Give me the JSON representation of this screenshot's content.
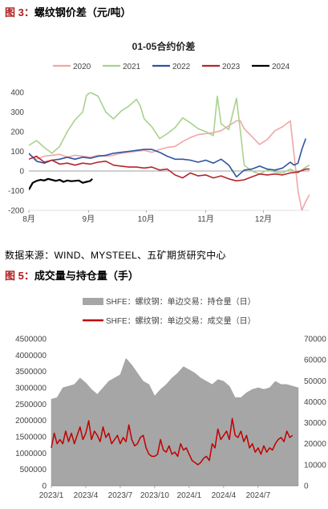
{
  "figure3": {
    "label": "图 3：",
    "title": "螺纹钢价差（元/吨）"
  },
  "source_note": "数据来源：WIND、MYSTEEL、五矿期货研究中心",
  "figure5": {
    "label": "图 5：",
    "title": "成交量与持仓量（手）"
  },
  "colors": {
    "s2020": "#f0a7a7",
    "s2021": "#a9d18e",
    "s2022": "#2e54a0",
    "s2023": "#b5262f",
    "s2024": "#000000",
    "oi": "#a6a6a6",
    "vol": "#c00000"
  },
  "chart_data": [
    {
      "type": "line",
      "title": "01-05合约价差",
      "ylim": [
        -200,
        400
      ],
      "yticks": [
        -200,
        -100,
        0,
        100,
        200,
        300,
        400
      ],
      "xlim": [
        0,
        146
      ],
      "x_month_ticks": [
        {
          "label": "8月",
          "x": 0
        },
        {
          "label": "9月",
          "x": 31
        },
        {
          "label": "10月",
          "x": 61
        },
        {
          "label": "11月",
          "x": 92
        },
        {
          "label": "12月",
          "x": 122
        }
      ],
      "legend_position": "top",
      "series": [
        {
          "name": "2020",
          "x": [
            0,
            4,
            8,
            12,
            16,
            20,
            24,
            28,
            32,
            36,
            40,
            44,
            48,
            52,
            56,
            60,
            64,
            68,
            72,
            76,
            80,
            84,
            88,
            92,
            96,
            100,
            104,
            108,
            110,
            112,
            116,
            120,
            124,
            128,
            132,
            136,
            138,
            140,
            142,
            144,
            146
          ],
          "y": [
            85,
            60,
            75,
            80,
            85,
            70,
            80,
            75,
            70,
            80,
            75,
            80,
            90,
            95,
            100,
            105,
            95,
            110,
            120,
            125,
            150,
            170,
            185,
            190,
            195,
            205,
            230,
            255,
            255,
            215,
            175,
            135,
            160,
            205,
            225,
            255,
            80,
            -100,
            -200,
            -155,
            -120
          ]
        },
        {
          "name": "2021",
          "x": [
            0,
            4,
            8,
            12,
            16,
            20,
            24,
            28,
            30,
            32,
            36,
            40,
            44,
            48,
            52,
            56,
            58,
            60,
            64,
            68,
            72,
            76,
            80,
            84,
            88,
            92,
            96,
            98,
            100,
            104,
            108,
            110,
            112,
            116,
            120,
            124,
            128,
            132,
            136,
            140,
            144,
            146
          ],
          "y": [
            130,
            155,
            120,
            90,
            125,
            200,
            260,
            300,
            385,
            400,
            380,
            300,
            265,
            305,
            330,
            365,
            330,
            265,
            225,
            165,
            190,
            220,
            270,
            245,
            215,
            200,
            180,
            380,
            240,
            210,
            370,
            205,
            30,
            0,
            -15,
            5,
            -5,
            -10,
            10,
            -10,
            20,
            30
          ]
        },
        {
          "name": "2022",
          "x": [
            0,
            4,
            8,
            12,
            16,
            20,
            24,
            28,
            32,
            36,
            40,
            44,
            48,
            52,
            56,
            60,
            64,
            68,
            72,
            76,
            80,
            84,
            88,
            92,
            96,
            100,
            104,
            108,
            112,
            116,
            120,
            124,
            128,
            132,
            136,
            138,
            140,
            142,
            144
          ],
          "y": [
            90,
            50,
            40,
            55,
            60,
            70,
            60,
            70,
            65,
            75,
            80,
            90,
            95,
            100,
            105,
            110,
            110,
            95,
            75,
            60,
            60,
            55,
            45,
            55,
            40,
            60,
            30,
            -30,
            5,
            10,
            25,
            10,
            5,
            15,
            45,
            30,
            40,
            110,
            165
          ]
        },
        {
          "name": "2023",
          "x": [
            0,
            4,
            8,
            12,
            16,
            20,
            24,
            28,
            32,
            36,
            40,
            44,
            48,
            52,
            56,
            60,
            64,
            68,
            72,
            76,
            80,
            84,
            88,
            92,
            96,
            100,
            104,
            108,
            112,
            116,
            120,
            124,
            128,
            132,
            136,
            140,
            144,
            146
          ],
          "y": [
            60,
            75,
            45,
            55,
            35,
            40,
            30,
            40,
            35,
            45,
            50,
            30,
            25,
            20,
            20,
            15,
            20,
            5,
            10,
            -20,
            -35,
            -10,
            -25,
            -20,
            -35,
            -25,
            -40,
            -50,
            -45,
            -30,
            -15,
            -20,
            -15,
            -20,
            -10,
            -5,
            10,
            10
          ]
        },
        {
          "name": "2024",
          "x": [
            0,
            2,
            4,
            6,
            8,
            10,
            12,
            14,
            16,
            18,
            20,
            22,
            24,
            26,
            28,
            30,
            32,
            33
          ],
          "y": [
            -95,
            -60,
            -50,
            -45,
            -48,
            -40,
            -45,
            -50,
            -45,
            -55,
            -48,
            -52,
            -50,
            -48,
            -60,
            -55,
            -50,
            -40
          ]
        }
      ]
    },
    {
      "type": "area",
      "legend_position": "top",
      "ylim_left": [
        0,
        4500000
      ],
      "yticks_left": [
        "0",
        "500000",
        "1000000",
        "1500000",
        "2000000",
        "2500000",
        "3000000",
        "3500000",
        "4000000",
        "4500000"
      ],
      "ylim_right": [
        0,
        70000
      ],
      "yticks_right": [
        "0",
        "10000",
        "20000",
        "30000",
        "40000",
        "50000",
        "60000",
        "70000"
      ],
      "x_ticks": [
        "2023/1",
        "2023/4",
        "2023/7",
        "2023/10",
        "2024/1",
        "2024/4",
        "2024/7"
      ],
      "x_tick_pos": [
        0,
        3,
        6,
        9,
        12,
        15,
        18
      ],
      "xlim": [
        0,
        21.5
      ],
      "series": [
        {
          "name": "SHFE：螺纹钢：单边交易：持仓量（日）",
          "axis": "left",
          "kind": "area",
          "x": [
            0,
            0.5,
            1,
            1.5,
            2,
            2.5,
            3,
            3.5,
            4,
            4.5,
            5,
            5.5,
            6,
            6.5,
            7,
            7.5,
            8,
            8.5,
            9,
            9.5,
            10,
            10.5,
            11,
            11.5,
            12,
            12.5,
            13,
            13.5,
            14,
            14.5,
            15,
            15.5,
            16,
            16.5,
            17,
            17.5,
            18,
            18.5,
            19,
            19.5,
            20,
            20.5,
            21,
            21.5
          ],
          "y": [
            2650000,
            2700000,
            3000000,
            3050000,
            3100000,
            3300000,
            3150000,
            2950000,
            2800000,
            3000000,
            3200000,
            3300000,
            3400000,
            3900000,
            3700000,
            3450000,
            3200000,
            3100000,
            2750000,
            2950000,
            3100000,
            3300000,
            3450000,
            3650000,
            3550000,
            3450000,
            3300000,
            3200000,
            3100000,
            3250000,
            3200000,
            3050000,
            2700000,
            2700000,
            2850000,
            2950000,
            3000000,
            2950000,
            3000000,
            3200000,
            3100000,
            3100000,
            3050000,
            3000000
          ]
        },
        {
          "name": "SHFE：螺纹钢：单边交易：成交量（日）",
          "axis": "right",
          "kind": "line",
          "x": [
            0,
            0.25,
            0.5,
            0.75,
            1,
            1.25,
            1.5,
            1.75,
            2,
            2.25,
            2.5,
            2.75,
            3,
            3.25,
            3.5,
            3.75,
            4,
            4.25,
            4.5,
            4.75,
            5,
            5.25,
            5.5,
            5.75,
            6,
            6.25,
            6.5,
            6.75,
            7,
            7.25,
            7.5,
            7.75,
            8,
            8.25,
            8.5,
            8.75,
            9,
            9.25,
            9.5,
            9.75,
            10,
            10.25,
            10.5,
            10.75,
            11,
            11.25,
            11.5,
            11.75,
            12,
            12.25,
            12.5,
            12.75,
            13,
            13.25,
            13.5,
            13.75,
            14,
            14.25,
            14.5,
            14.75,
            15,
            15.25,
            15.5,
            15.75,
            16,
            16.25,
            16.5,
            16.75,
            17,
            17.25,
            17.5,
            17.75,
            18,
            18.25,
            18.5,
            18.75,
            19,
            19.25,
            19.5,
            19.75,
            20,
            20.25,
            20.5,
            20.75,
            21
          ],
          "y": [
            18000,
            25000,
            20000,
            22000,
            20000,
            26000,
            21000,
            25000,
            20000,
            24000,
            28000,
            22000,
            25000,
            31000,
            22000,
            26000,
            24000,
            21000,
            28000,
            23000,
            25000,
            20000,
            22000,
            24000,
            20000,
            23000,
            21000,
            29000,
            22000,
            19000,
            20000,
            23000,
            24000,
            18000,
            15000,
            14000,
            14000,
            15000,
            22000,
            17000,
            16000,
            19000,
            15000,
            16000,
            14000,
            20000,
            17000,
            18000,
            15000,
            12000,
            11000,
            10000,
            11000,
            13000,
            14000,
            12000,
            20000,
            18000,
            27000,
            22000,
            24000,
            26000,
            22000,
            32000,
            24000,
            23000,
            26000,
            21000,
            24000,
            18000,
            20000,
            16000,
            18000,
            15000,
            19000,
            16000,
            18000,
            17000,
            20000,
            22000,
            23000,
            21000,
            26000,
            23000,
            24000
          ]
        }
      ]
    }
  ]
}
